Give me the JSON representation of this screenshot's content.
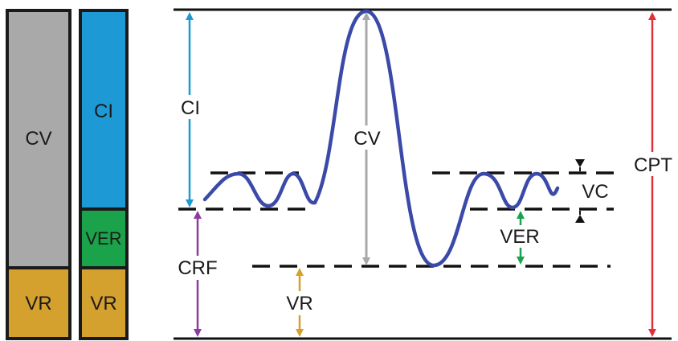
{
  "bars": {
    "left": {
      "segments": [
        {
          "label": "CV",
          "color": "#a9a9a9"
        },
        {
          "label": "VR",
          "color": "#d4a12f"
        }
      ]
    },
    "right": {
      "segments": [
        {
          "label": "CI",
          "color": "#1d9ad6"
        },
        {
          "label": "VER",
          "color": "#1aa34a"
        },
        {
          "label": "VR",
          "color": "#d4a12f"
        }
      ]
    }
  },
  "labels": {
    "ci": "CI",
    "cv": "CV",
    "crf": "CRF",
    "vr": "VR",
    "ver": "VER",
    "vc": "VC",
    "cpt": "CPT"
  },
  "colors": {
    "ci_arrow": "#1d9ad6",
    "cv_arrow": "#a9a9a9",
    "crf_arrow": "#8e3a9e",
    "vr_arrow": "#d4a12f",
    "ver_arrow": "#1aa34a",
    "cpt_arrow": "#e0303a",
    "vc_arrow": "#111111",
    "curve": "#3b4aa8",
    "lines": "#111111"
  }
}
